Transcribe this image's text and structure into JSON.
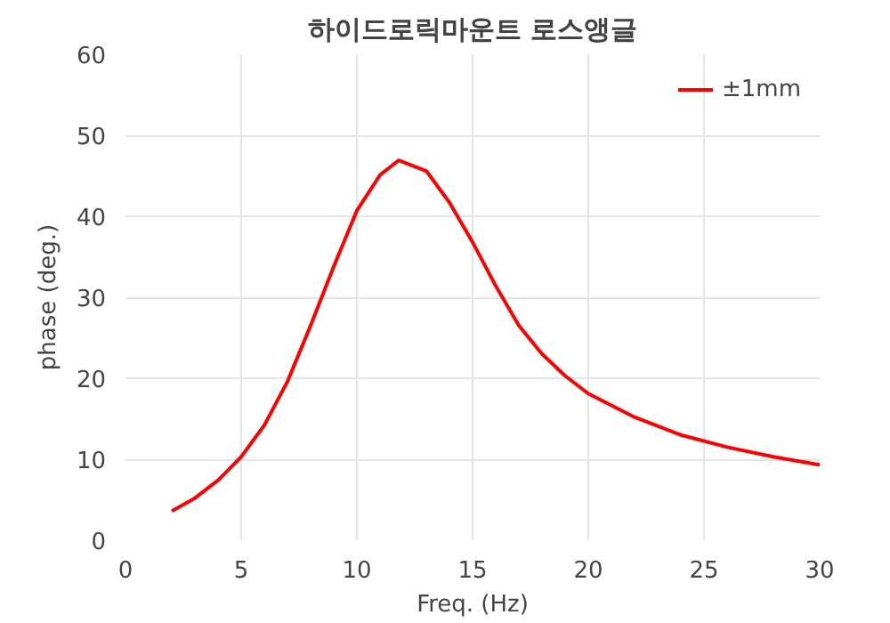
{
  "chart_data": {
    "type": "line",
    "title": "하이드로릭마운트 로스앵글",
    "xlabel": "Freq. (Hz)",
    "ylabel": "phase (deg.)",
    "xlim": [
      0,
      30
    ],
    "xticks": [
      0,
      5,
      10,
      15,
      20,
      25,
      30
    ],
    "ylim": [
      0,
      60
    ],
    "yticks": [
      0,
      10,
      20,
      30,
      40,
      50,
      60
    ],
    "grid": true,
    "legend": "top right",
    "marker": "none",
    "line_style": "solid",
    "series": [
      {
        "name": "±1mm",
        "color": "#ff0000",
        "x": [
          2,
          3,
          4,
          5,
          6,
          7,
          8,
          9,
          10,
          11,
          11.8,
          13,
          14,
          15,
          16,
          17,
          18,
          19,
          20,
          22,
          24,
          26,
          28,
          30
        ],
        "values": [
          3.6,
          5.2,
          7.4,
          10.3,
          14.2,
          19.6,
          26.5,
          33.8,
          40.7,
          45.1,
          46.9,
          45.6,
          41.7,
          36.8,
          31.4,
          26.5,
          23,
          20.3,
          18.1,
          15.2,
          13,
          11.5,
          10.3,
          9.3
        ]
      }
    ]
  }
}
